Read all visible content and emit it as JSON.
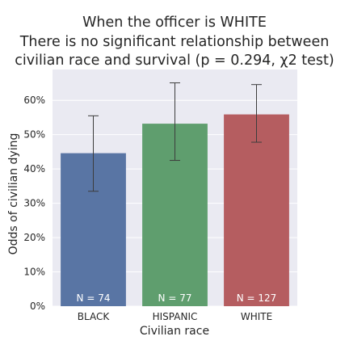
{
  "chart_data": {
    "type": "bar",
    "title_lines": [
      "When the officer is WHITE",
      "There is no significant relationship between",
      "civilian race and survival (p = 0.294, χ2 test)"
    ],
    "xlabel": "Civilian race",
    "ylabel": "Odds of civilian dying",
    "categories": [
      "BLACK",
      "HISPANIC",
      "WHITE"
    ],
    "values": [
      0.446,
      0.532,
      0.559
    ],
    "error_low": [
      0.335,
      0.425,
      0.478
    ],
    "error_high": [
      0.555,
      0.651,
      0.646
    ],
    "bar_labels": [
      "N = 74",
      "N = 77",
      "N = 127"
    ],
    "colors": [
      "#5975a4",
      "#5f9e6e",
      "#b55d60"
    ],
    "ylim": [
      0,
      0.69
    ],
    "yticks": [
      0,
      0.1,
      0.2,
      0.3,
      0.4,
      0.5,
      0.6
    ],
    "ytick_labels": [
      "0%",
      "10%",
      "20%",
      "30%",
      "40%",
      "50%",
      "60%"
    ],
    "grid": true,
    "background": "#eaeaf2"
  }
}
